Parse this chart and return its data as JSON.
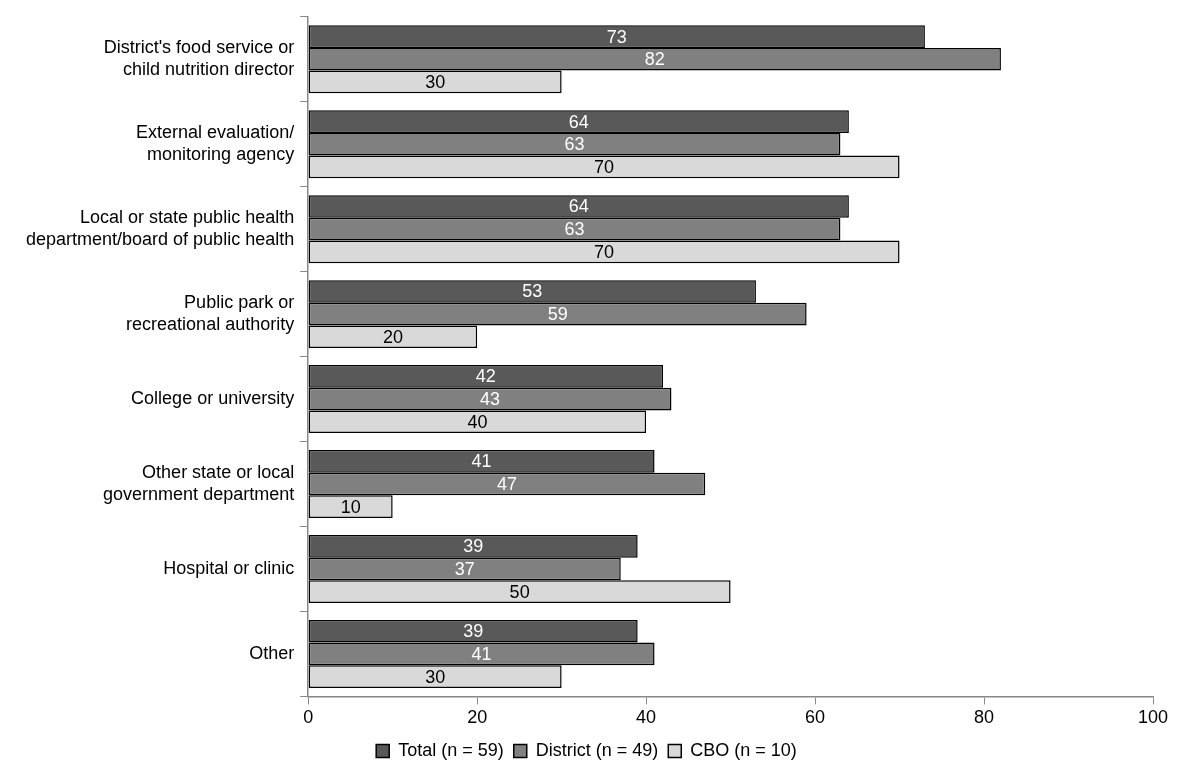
{
  "chart_data": {
    "type": "bar",
    "orientation": "horizontal",
    "categories": [
      "District's food service or child nutrition director",
      "External evaluation/ monitoring agency",
      "Local or state public health department/board of public health",
      "Public park or recreational authority",
      "College or university",
      "Other state or local government department",
      "Hospital or clinic",
      "Other"
    ],
    "series": [
      {
        "name": "Total (n = 59)",
        "color": "#595959",
        "values": [
          73,
          64,
          64,
          53,
          42,
          41,
          39,
          39
        ]
      },
      {
        "name": "District (n = 49)",
        "color": "#808080",
        "values": [
          82,
          63,
          63,
          59,
          43,
          47,
          37,
          41
        ]
      },
      {
        "name": "CBO (n = 10)",
        "color": "#d9d9d9",
        "values": [
          30,
          70,
          70,
          20,
          40,
          10,
          50,
          30
        ]
      }
    ],
    "xlim": [
      0,
      100
    ],
    "xticks": [
      0,
      20,
      40,
      60,
      80,
      100
    ],
    "grid": false,
    "legend": "bottom",
    "data_labels": true
  }
}
